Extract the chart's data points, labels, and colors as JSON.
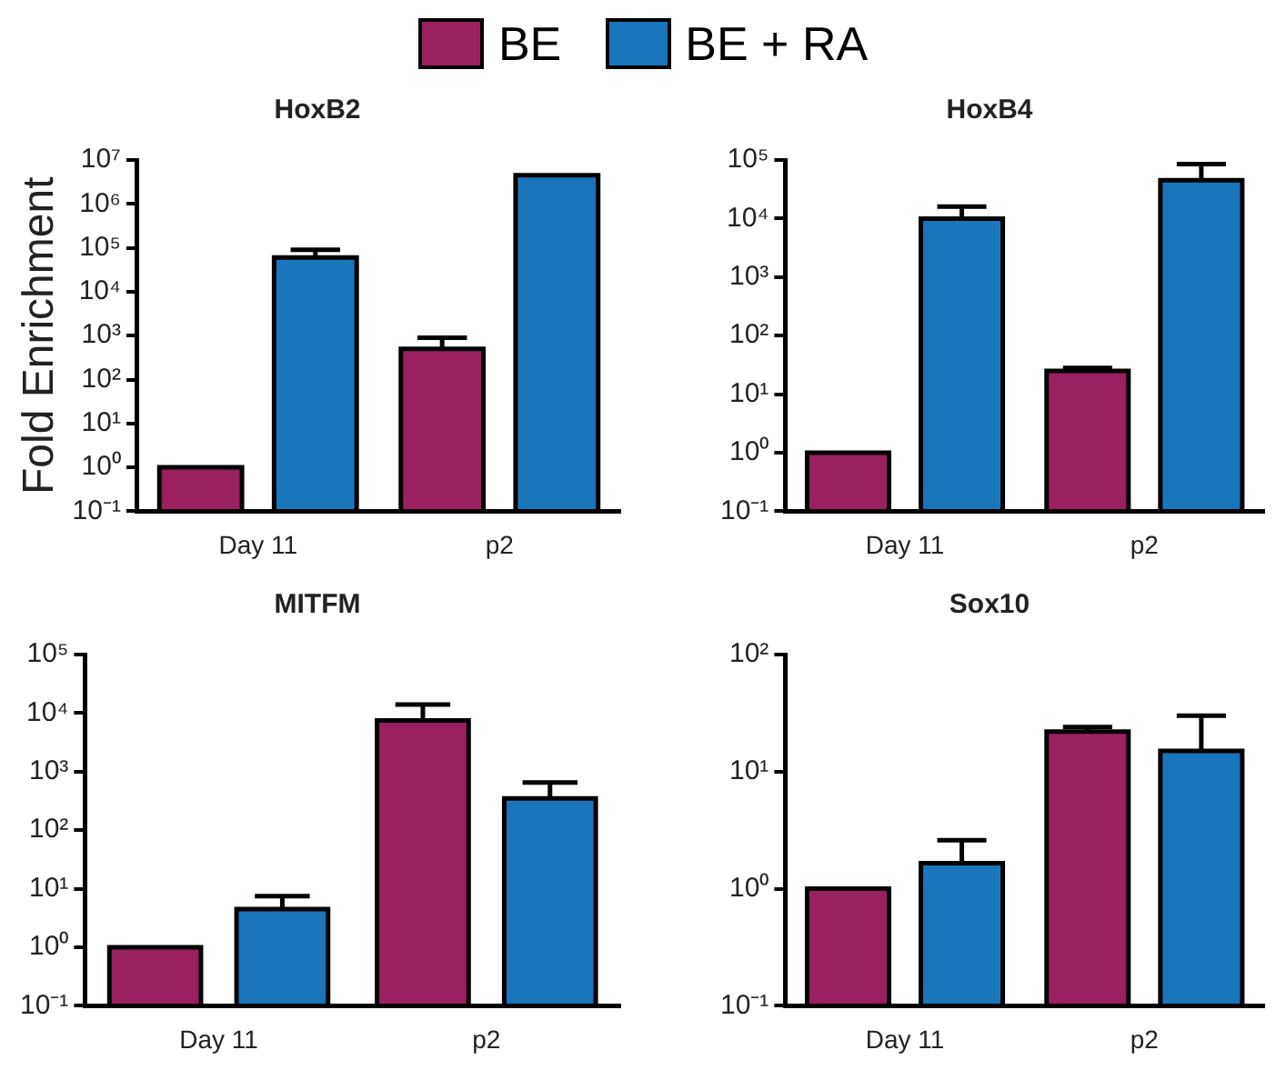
{
  "chart_data": [
    {
      "type": "bar",
      "title": "HoxB2",
      "ylabel": "Fold Enrichment",
      "categories": [
        "Day 11",
        "p2"
      ],
      "log": true,
      "legend": "top",
      "grid": false,
      "ylim": [
        0.1,
        10000000
      ],
      "yticks": [
        {
          "value": 0.1,
          "label": "10⁻¹"
        },
        {
          "value": 1,
          "label": "10⁰"
        },
        {
          "value": 10,
          "label": "10¹"
        },
        {
          "value": 100,
          "label": "10²"
        },
        {
          "value": 1000,
          "label": "10³"
        },
        {
          "value": 10000,
          "label": "10⁴"
        },
        {
          "value": 100000,
          "label": "10⁵"
        },
        {
          "value": 1000000,
          "label": "10⁶"
        },
        {
          "value": 10000000,
          "label": "10⁷"
        }
      ],
      "series": [
        {
          "name": "BE",
          "color": "#9b2060",
          "values": [
            1,
            500
          ],
          "errors": [
            null,
            [
              500,
              900
            ]
          ]
        },
        {
          "name": "BE + RA",
          "color": "#1a75bb",
          "values": [
            60000,
            4500000
          ],
          "errors": [
            [
              60000,
              90000
            ],
            null
          ]
        }
      ]
    },
    {
      "type": "bar",
      "title": "HoxB4",
      "categories": [
        "Day 11",
        "p2"
      ],
      "log": true,
      "grid": false,
      "ylim": [
        0.1,
        100000
      ],
      "yticks": [
        {
          "value": 0.1,
          "label": "10⁻¹"
        },
        {
          "value": 1,
          "label": "10⁰"
        },
        {
          "value": 10,
          "label": "10¹"
        },
        {
          "value": 100,
          "label": "10²"
        },
        {
          "value": 1000,
          "label": "10³"
        },
        {
          "value": 10000,
          "label": "10⁴"
        },
        {
          "value": 100000,
          "label": "10⁵"
        }
      ],
      "series": [
        {
          "color": "#9b2060",
          "values": [
            1,
            25
          ],
          "errors": [
            null,
            [
              25,
              28
            ]
          ]
        },
        {
          "color": "#1a75bb",
          "values": [
            10000,
            45000
          ],
          "errors": [
            [
              10000,
              16000
            ],
            [
              45000,
              85000
            ]
          ]
        }
      ]
    },
    {
      "type": "bar",
      "title": "MITFM",
      "categories": [
        "Day 11",
        "p2"
      ],
      "log": true,
      "grid": false,
      "ylim": [
        0.1,
        100000
      ],
      "yticks": [
        {
          "value": 0.1,
          "label": "10⁻¹"
        },
        {
          "value": 1,
          "label": "10⁰"
        },
        {
          "value": 10,
          "label": "10¹"
        },
        {
          "value": 100,
          "label": "10²"
        },
        {
          "value": 1000,
          "label": "10³"
        },
        {
          "value": 10000,
          "label": "10⁴"
        },
        {
          "value": 100000,
          "label": "10⁵"
        }
      ],
      "series": [
        {
          "color": "#9b2060",
          "values": [
            1,
            7500
          ],
          "errors": [
            null,
            [
              7500,
              14000
            ]
          ]
        },
        {
          "color": "#1a75bb",
          "values": [
            4.5,
            350
          ],
          "errors": [
            [
              4.5,
              7.5
            ],
            [
              350,
              650
            ]
          ]
        }
      ]
    },
    {
      "type": "bar",
      "title": "Sox10",
      "categories": [
        "Day 11",
        "p2"
      ],
      "log": true,
      "grid": false,
      "ylim": [
        0.1,
        100
      ],
      "yticks": [
        {
          "value": 0.1,
          "label": "10⁻¹"
        },
        {
          "value": 1,
          "label": "10⁰"
        },
        {
          "value": 10,
          "label": "10¹"
        },
        {
          "value": 100,
          "label": "10²"
        }
      ],
      "series": [
        {
          "color": "#9b2060",
          "values": [
            1,
            22
          ],
          "errors": [
            null,
            [
              22,
              24
            ]
          ]
        },
        {
          "color": "#1a75bb",
          "values": [
            1.65,
            15
          ],
          "errors": [
            [
              1.65,
              2.6
            ],
            [
              15,
              30
            ]
          ]
        }
      ]
    }
  ]
}
